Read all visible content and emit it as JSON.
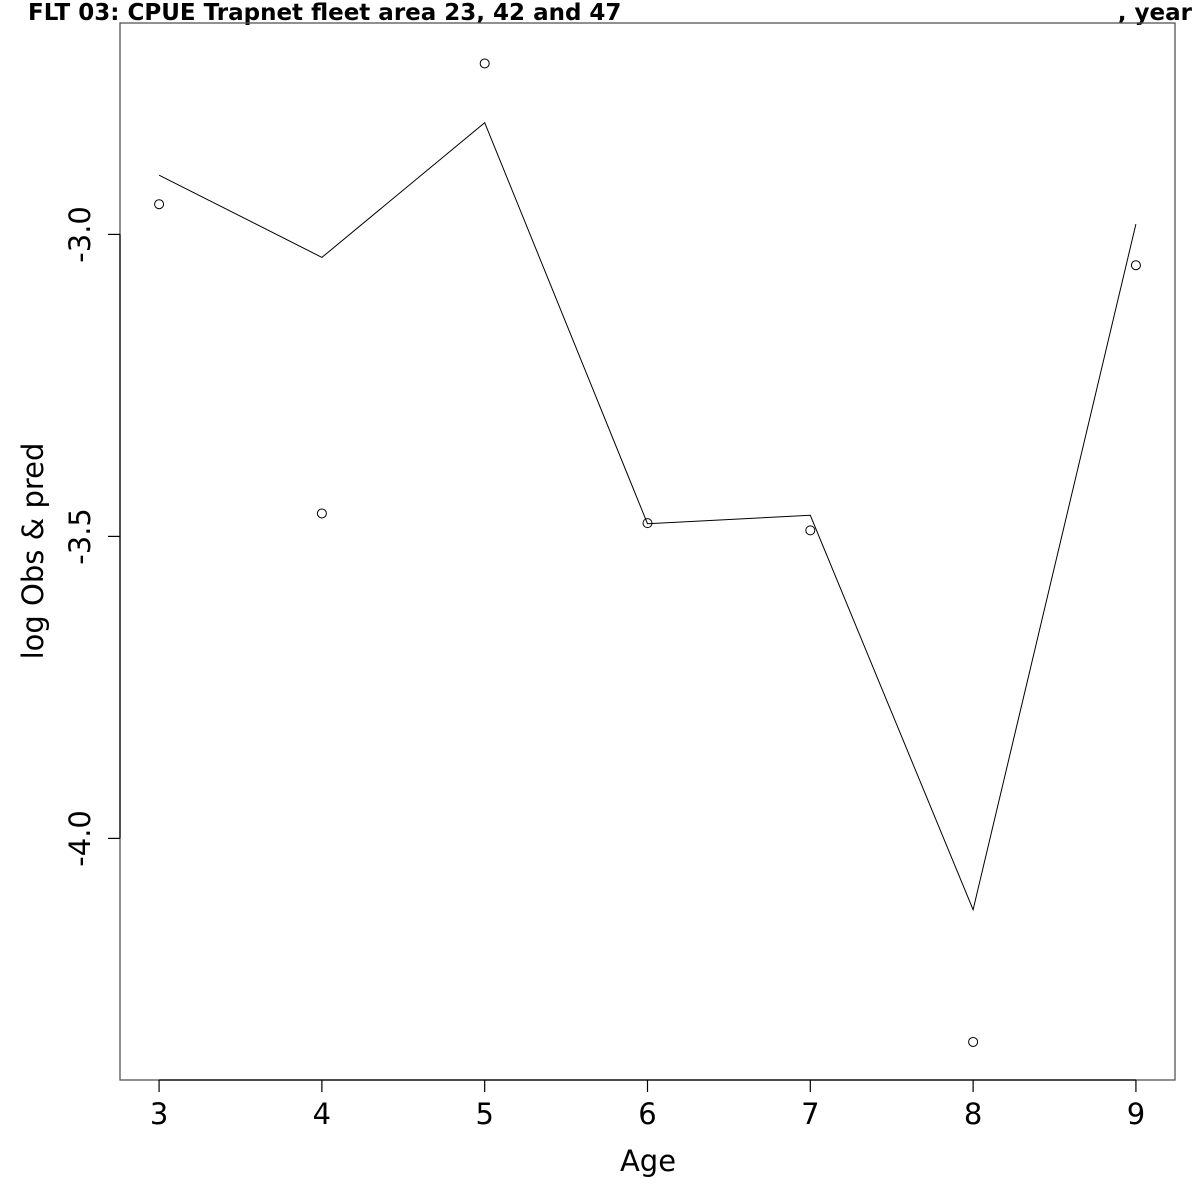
{
  "title_left": "FLT 03: CPUE Trapnet fleet area 23, 42 and 47",
  "title_right": ", year",
  "chart_data": {
    "type": "line",
    "title": "FLT 03: CPUE Trapnet fleet area 23, 42 and 47 , year",
    "xlabel": "Age",
    "ylabel": "log Obs & pred",
    "x": [
      3,
      4,
      5,
      6,
      7,
      8,
      9
    ],
    "xticks": [
      3,
      4,
      5,
      6,
      7,
      8,
      9
    ],
    "yticks": [
      -3.0,
      -3.5,
      -4.0
    ],
    "ytick_labels": [
      "-3.0",
      "-3.5",
      "-4.0"
    ],
    "xlim": [
      2.76,
      9.24
    ],
    "ylim": [
      -4.4,
      -2.65
    ],
    "grid": false,
    "series": [
      {
        "style": "line",
        "values": [
          -2.902,
          -3.038,
          -2.815,
          -3.479,
          -3.465,
          -4.118,
          -2.983
        ]
      },
      {
        "style": "points",
        "marker": "open-circle",
        "values": [
          -2.95,
          -3.462,
          -2.717,
          -3.478,
          -3.49,
          -4.337,
          -3.051
        ]
      }
    ]
  }
}
